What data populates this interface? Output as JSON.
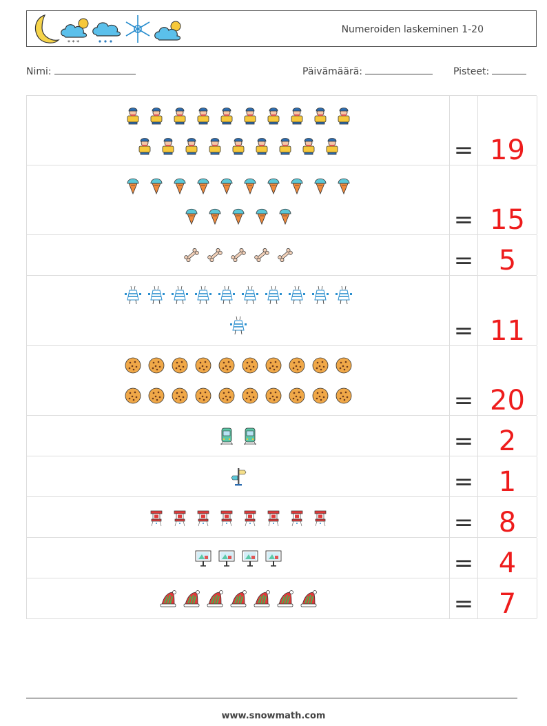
{
  "header": {
    "title": "Numeroiden laskeminen 1-20",
    "weather_icons": [
      "moon-icon",
      "cloud-sun-snow-icon",
      "cloud-rain-icon",
      "snowflake-icon",
      "cloud-sun-icon"
    ]
  },
  "info": {
    "name_label": "Nimi:",
    "date_label": "Päivämäärä:",
    "score_label": "Pisteet:"
  },
  "exercises": [
    {
      "icon": "worker-icon",
      "count": 19,
      "answer": "19"
    },
    {
      "icon": "ice-cream-icon",
      "count": 15,
      "answer": "15"
    },
    {
      "icon": "bone-icon",
      "count": 5,
      "answer": "5"
    },
    {
      "icon": "robot-icon",
      "count": 11,
      "answer": "11"
    },
    {
      "icon": "cookie-icon",
      "count": 20,
      "answer": "20"
    },
    {
      "icon": "train-icon",
      "count": 2,
      "answer": "2"
    },
    {
      "icon": "signpost-icon",
      "count": 1,
      "answer": "1"
    },
    {
      "icon": "lantern-icon",
      "count": 8,
      "answer": "8"
    },
    {
      "icon": "billboard-icon",
      "count": 4,
      "answer": "4"
    },
    {
      "icon": "santa-hat-icon",
      "count": 7,
      "answer": "7"
    }
  ],
  "equals_sign": "=",
  "footer": {
    "url": "www.snowmath.com"
  },
  "colors": {
    "answer": "#ee1c1c",
    "grid": "#dddddd"
  }
}
